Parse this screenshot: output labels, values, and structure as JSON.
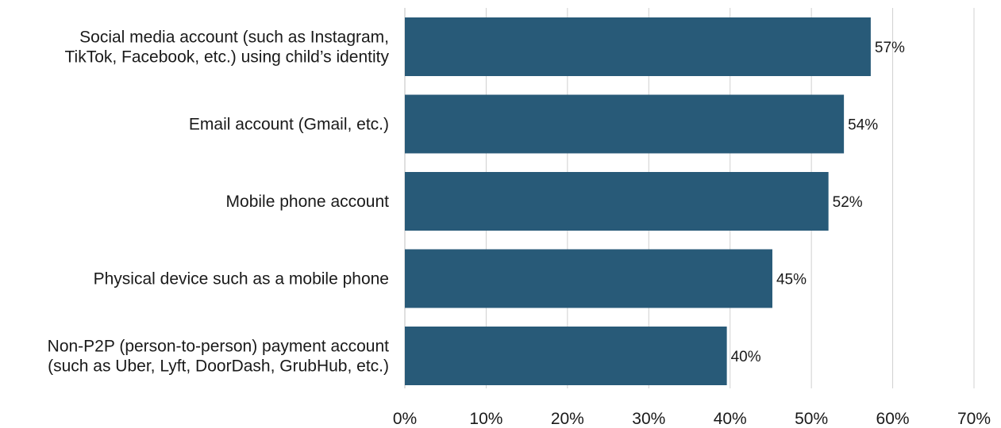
{
  "chart_data": {
    "type": "bar",
    "orientation": "horizontal",
    "categories": [
      [
        "Social media account (such as Instagram,",
        "TikTok, Facebook, etc.) using child’s identity"
      ],
      [
        "Email account (Gmail, etc.)"
      ],
      [
        "Mobile phone account"
      ],
      [
        "Physical device such as a mobile phone"
      ],
      [
        "Non-P2P (person-to-person) payment account",
        "(such as Uber, Lyft, DoorDash, GrubHub, etc.)"
      ]
    ],
    "values": [
      57.3,
      54,
      52.1,
      45.2,
      39.6
    ],
    "data_labels": [
      "57%",
      "54%",
      "52%",
      "45%",
      "40%"
    ],
    "xlim": [
      0,
      70
    ],
    "xticks": [
      0,
      10,
      20,
      30,
      40,
      50,
      60,
      70
    ],
    "xtick_labels": [
      "0%",
      "10%",
      "20%",
      "30%",
      "40%",
      "50%",
      "60%",
      "70%"
    ],
    "grid": true,
    "legend": "none",
    "title": "",
    "xlabel": "",
    "ylabel": "",
    "bar_color": "#285a78"
  }
}
